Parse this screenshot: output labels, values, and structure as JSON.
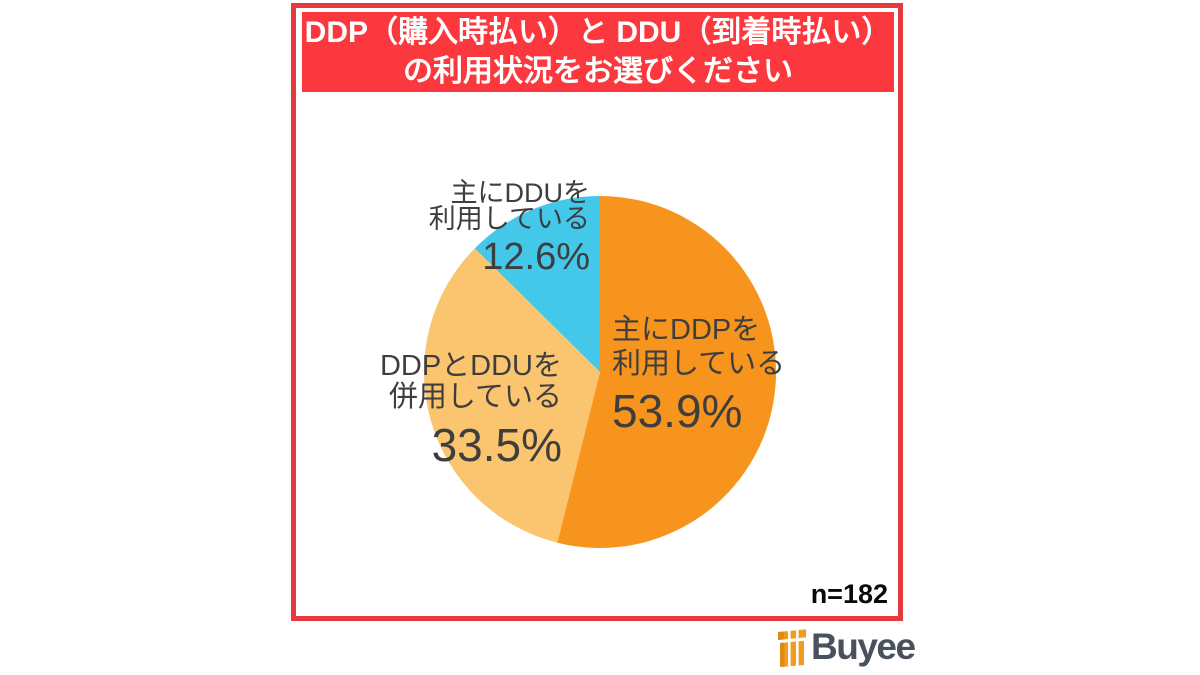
{
  "panel": {
    "title_line1": "DDP（購入時払い）と DDU（到着時払い）",
    "title_line2": "の利用状況をお選びください"
  },
  "chart_data": {
    "type": "pie",
    "title": "DDP（購入時払い）と DDU（到着時払い）の利用状況をお選びください",
    "start_angle_deg": 0,
    "direction": "clockwise",
    "sample_size": "n=182",
    "slices": [
      {
        "label": "主にDDPを利用している",
        "label_lines": [
          "主にDDPを",
          "利用している"
        ],
        "value": 53.9,
        "display": "53.9%",
        "color": "#F7941E"
      },
      {
        "label": "DDPとDDUを併用している",
        "label_lines": [
          "DDPとDDUを",
          "併用している"
        ],
        "value": 33.5,
        "display": "33.5%",
        "color": "#FBC46E"
      },
      {
        "label": "主にDDUを利用している",
        "label_lines": [
          "主にDDUを",
          "利用している"
        ],
        "value": 12.6,
        "display": "12.6%",
        "color": "#44C8EA"
      }
    ]
  },
  "logo": {
    "text": "Buyee",
    "icon": "gift-box-icon",
    "text_color": "#49525C",
    "icon_color": "#F29C1F",
    "icon_shadow_color": "#E08A12"
  },
  "colors": {
    "frame_red": "#E8393F",
    "title_bg": "#FA383E",
    "title_text": "#FFFFFF",
    "label_text": "#3E3E3E",
    "background": "#FFFFFF"
  }
}
